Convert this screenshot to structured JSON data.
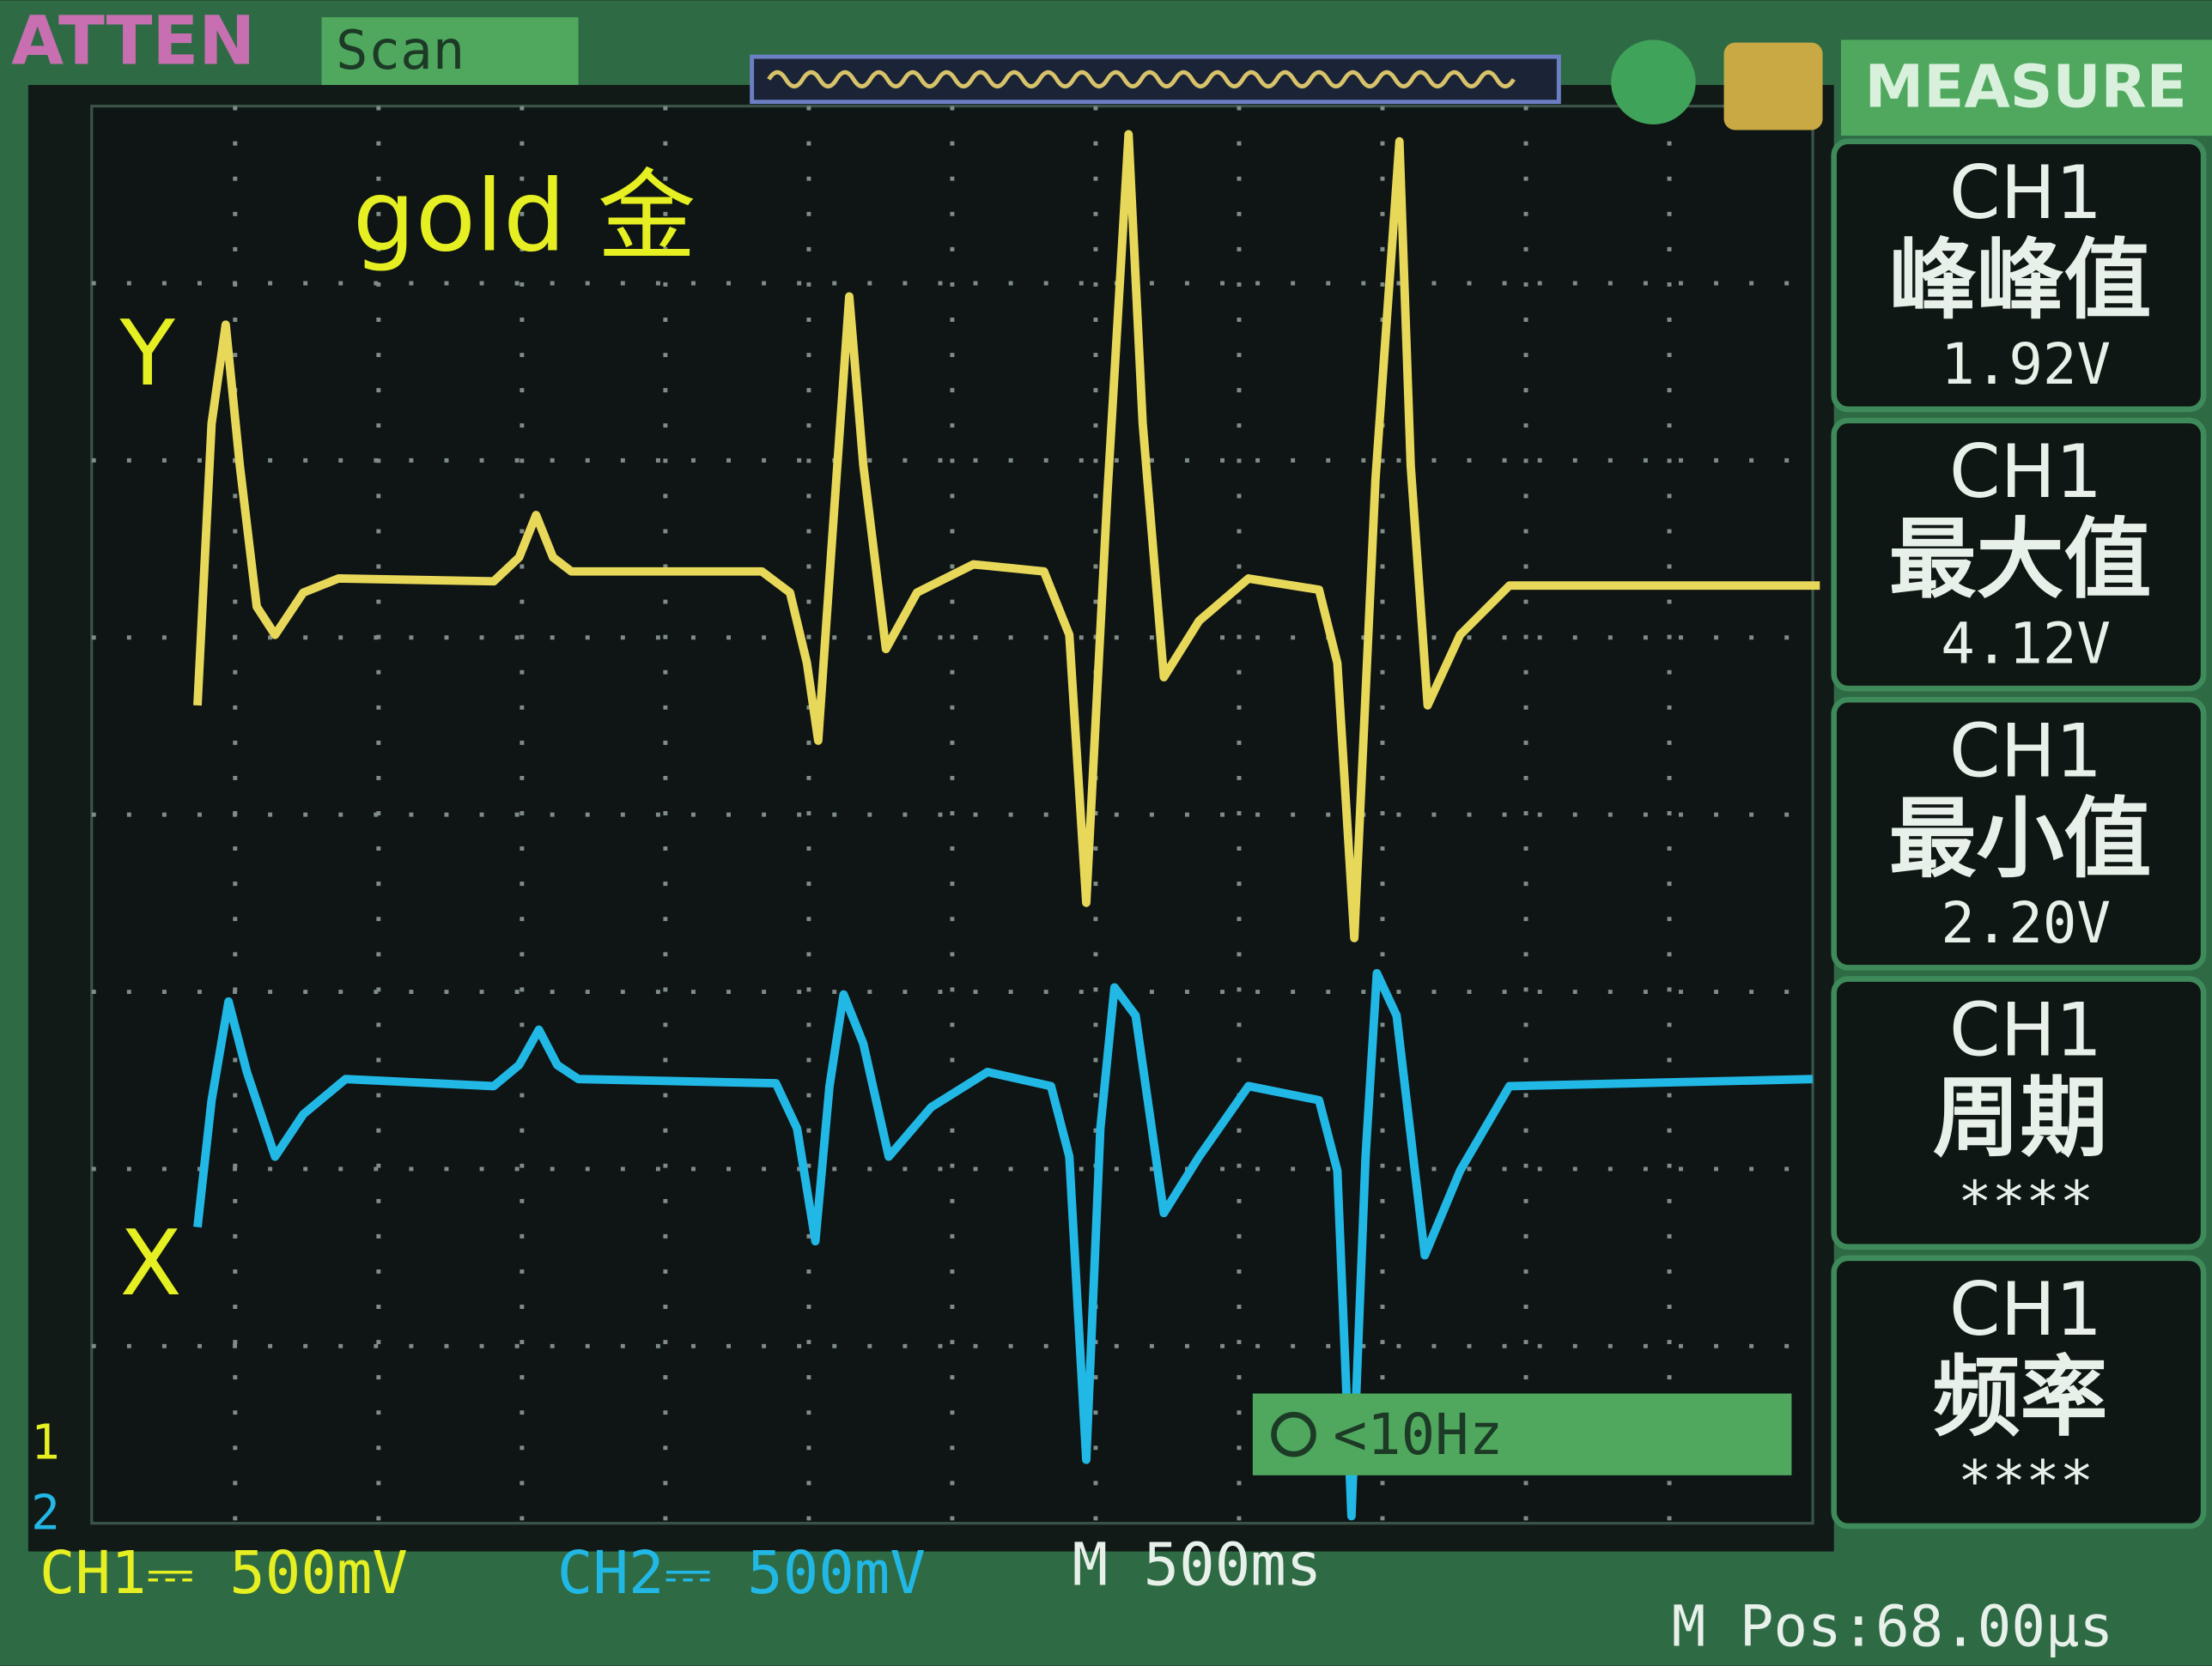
{
  "header": {
    "brand": "ATTEN",
    "mode": "Scan",
    "menu_title": "MEASURE"
  },
  "annotations": {
    "title": "gold  金",
    "y_label": "Y",
    "x_label": "X"
  },
  "measurements": [
    {
      "channel": "CH1",
      "name": "峰峰值",
      "value": "1.92V"
    },
    {
      "channel": "CH1",
      "name": "最大值",
      "value": "4.12V"
    },
    {
      "channel": "CH1",
      "name": "最小值",
      "value": "2.20V"
    },
    {
      "channel": "CH1",
      "name": "周期",
      "value": "****"
    },
    {
      "channel": "CH1",
      "name": "频率",
      "value": "****"
    }
  ],
  "markers": [
    "1",
    "2"
  ],
  "trigger": {
    "frequency": "<10Hz"
  },
  "footer": {
    "ch1": "CH1⎓ 500mV",
    "ch2": "CH2⎓ 500mV",
    "timebase": "M 500ms",
    "position": "M Pos:68.00μs"
  }
}
